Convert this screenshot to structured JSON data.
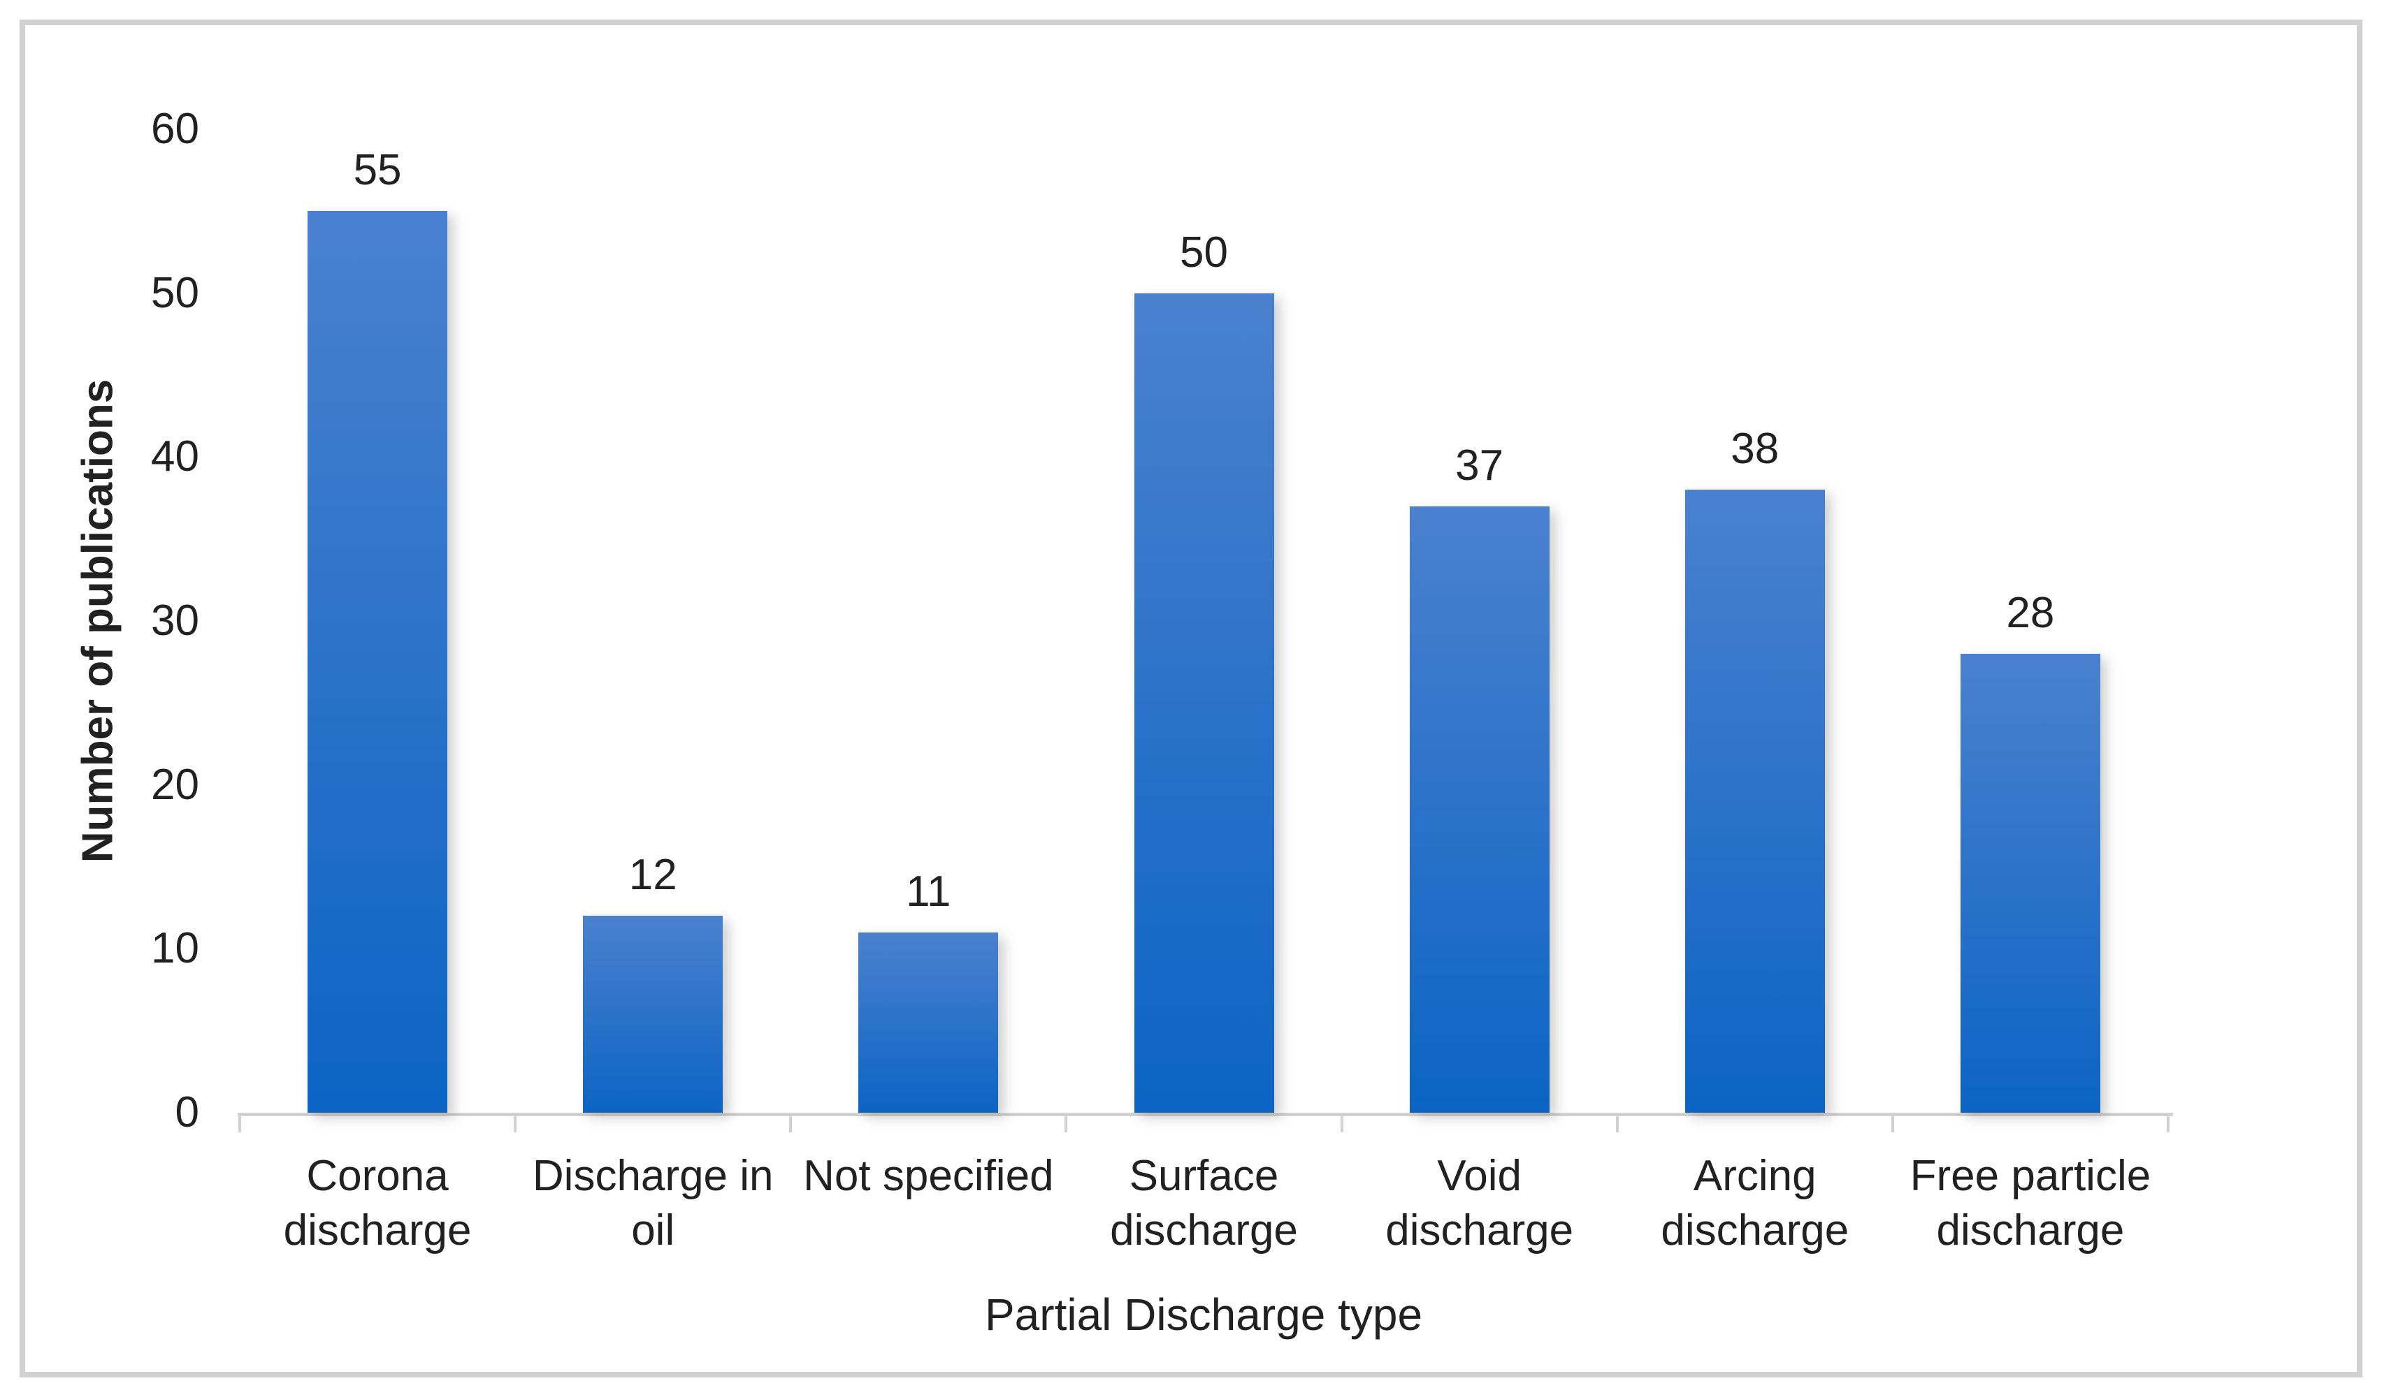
{
  "figure": {
    "background": "#ffffff",
    "border_color": "#d2d2d2"
  },
  "chart_data": {
    "type": "bar",
    "title": "",
    "categories": [
      "Corona discharge",
      "Discharge in oil",
      "Not specified",
      "Surface discharge",
      "Void discharge",
      "Arcing discharge",
      "Free particle discharge"
    ],
    "category_label_lines": [
      [
        "Corona",
        "discharge"
      ],
      [
        "Discharge in",
        "oil"
      ],
      [
        "Not specified"
      ],
      [
        "Surface",
        "discharge"
      ],
      [
        "Void",
        "discharge"
      ],
      [
        "Arcing",
        "discharge"
      ],
      [
        "Free particle",
        "discharge"
      ]
    ],
    "values": [
      55,
      12,
      11,
      50,
      37,
      38,
      28
    ],
    "data_labels": [
      "55",
      "12",
      "11",
      "50",
      "37",
      "38",
      "28"
    ],
    "xlabel": "Partial Discharge type",
    "ylabel": "Number of publications",
    "ylim": [
      0,
      60
    ],
    "yticks": [
      0,
      10,
      20,
      30,
      40,
      50,
      60
    ],
    "grid": false,
    "legend": false,
    "data_labels_shown": true,
    "colors": {
      "bar_gradient_top": "#4a81ce",
      "bar_gradient_bottom": "#0b64c4",
      "axis_line": "#d2d2d2",
      "text": "#212121"
    }
  }
}
